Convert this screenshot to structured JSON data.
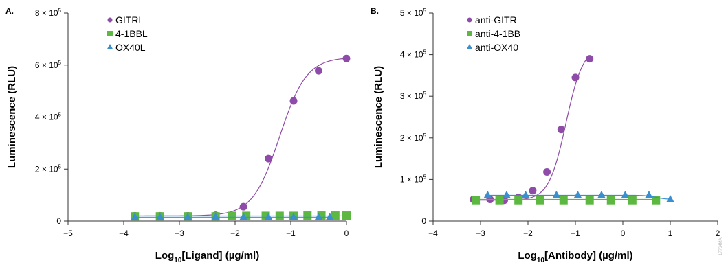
{
  "watermark": "17764MA",
  "chart_data": [
    {
      "type": "scatter",
      "panel_label": "A.",
      "xlabel_prefix": "Log",
      "xlabel_sub": "10",
      "xlabel_suffix": "[Ligand] (µg/ml)",
      "ylabel": "Luminescence (RLU)",
      "xlim": [
        -5,
        0
      ],
      "ylim": [
        0,
        800000
      ],
      "x_ticks": [
        -5,
        -4,
        -3,
        -2,
        -1,
        0
      ],
      "x_tick_labels": [
        "−5",
        "−4",
        "−3",
        "−2",
        "−1",
        "0"
      ],
      "y_ticks": [
        0,
        200000,
        400000,
        600000,
        800000
      ],
      "y_tick_labels": [
        {
          "base": "0",
          "exp": ""
        },
        {
          "base": "2 × 10",
          "exp": "5"
        },
        {
          "base": "4 × 10",
          "exp": "5"
        },
        {
          "base": "6 × 10",
          "exp": "5"
        },
        {
          "base": "8 × 10",
          "exp": "5"
        }
      ],
      "legend_position": "top-left",
      "series": [
        {
          "name": "GITRL",
          "marker": "circle",
          "color": "#8e4ba8",
          "x": [
            -3.8,
            -3.35,
            -2.85,
            -2.35,
            -1.85,
            -1.4,
            -0.95,
            -0.5,
            0
          ],
          "y": [
            20000,
            20000,
            20000,
            22000,
            55000,
            240000,
            462000,
            578000,
            625000
          ],
          "fit": {
            "bottom": 20000,
            "top": 630000,
            "logEC50": -1.2,
            "hill": 1.8
          }
        },
        {
          "name": "4-1BBL",
          "marker": "square",
          "color": "#5cb841",
          "x": [
            -3.8,
            -3.35,
            -2.85,
            -2.35,
            -2.05,
            -1.8,
            -1.45,
            -1.2,
            -0.95,
            -0.7,
            -0.45,
            -0.2,
            0
          ],
          "y": [
            18000,
            18000,
            18000,
            18000,
            20000,
            20000,
            20000,
            20000,
            20000,
            21000,
            21000,
            21000,
            21000
          ],
          "fit": {
            "bottom": 20000,
            "top": 20000,
            "logEC50": -2,
            "hill": 1
          }
        },
        {
          "name": "OX40L",
          "marker": "triangle",
          "color": "#3a8fcf",
          "x": [
            -3.8,
            -3.35,
            -2.85,
            -2.35,
            -1.85,
            -1.4,
            -0.95,
            -0.5,
            -0.3
          ],
          "y": [
            15000,
            15000,
            15000,
            15000,
            15000,
            15000,
            15000,
            15000,
            15000
          ],
          "fit": {
            "bottom": 15000,
            "top": 15000,
            "logEC50": -2,
            "hill": 1
          }
        }
      ]
    },
    {
      "type": "scatter",
      "panel_label": "B.",
      "xlabel_prefix": "Log",
      "xlabel_sub": "10",
      "xlabel_suffix": "[Antibody] (µg/ml)",
      "ylabel": "Luminescence (RLU)",
      "xlim": [
        -4,
        2
      ],
      "ylim": [
        0,
        500000
      ],
      "x_ticks": [
        -4,
        -3,
        -2,
        -1,
        0,
        1,
        2
      ],
      "x_tick_labels": [
        "−4",
        "−3",
        "−2",
        "−1",
        "0",
        "1",
        "2"
      ],
      "y_ticks": [
        0,
        100000,
        200000,
        300000,
        400000,
        500000
      ],
      "y_tick_labels": [
        {
          "base": "0",
          "exp": ""
        },
        {
          "base": "1 × 10",
          "exp": "5"
        },
        {
          "base": "2 × 10",
          "exp": "5"
        },
        {
          "base": "3 × 10",
          "exp": "5"
        },
        {
          "base": "4 × 10",
          "exp": "5"
        },
        {
          "base": "5 × 10",
          "exp": "5"
        }
      ],
      "legend_position": "top-left",
      "series": [
        {
          "name": "anti-GITR",
          "marker": "circle",
          "color": "#8e4ba8",
          "x": [
            -3.15,
            -2.8,
            -2.5,
            -2.2,
            -1.9,
            -1.6,
            -1.3,
            -1.0,
            -0.7
          ],
          "y": [
            52000,
            52000,
            50000,
            57000,
            73000,
            118000,
            220000,
            345000,
            390000
          ],
          "fit": {
            "bottom": 50000,
            "top": 420000,
            "logEC50": -1.2,
            "hill": 2.4
          }
        },
        {
          "name": "anti-4-1BB",
          "marker": "square",
          "color": "#5cb841",
          "x": [
            -3.1,
            -2.6,
            -2.2,
            -1.75,
            -1.25,
            -0.7,
            -0.25,
            0.2,
            0.7
          ],
          "y": [
            50000,
            50000,
            50000,
            50000,
            50000,
            50000,
            50000,
            50000,
            50000
          ],
          "fit": {
            "bottom": 52000,
            "top": 52000,
            "logEC50": -1,
            "hill": 1
          }
        },
        {
          "name": "anti-OX40",
          "marker": "triangle",
          "color": "#3a8fcf",
          "x": [
            -2.85,
            -2.45,
            -2.05,
            -1.4,
            -0.95,
            -0.45,
            0.05,
            0.55,
            1.0
          ],
          "y": [
            62000,
            62000,
            62000,
            62000,
            62000,
            62000,
            62000,
            62000,
            52000
          ],
          "fit": {
            "bottom": 52000,
            "top": 62000,
            "logEC50": 0.7,
            "hill": -4
          }
        }
      ]
    }
  ]
}
